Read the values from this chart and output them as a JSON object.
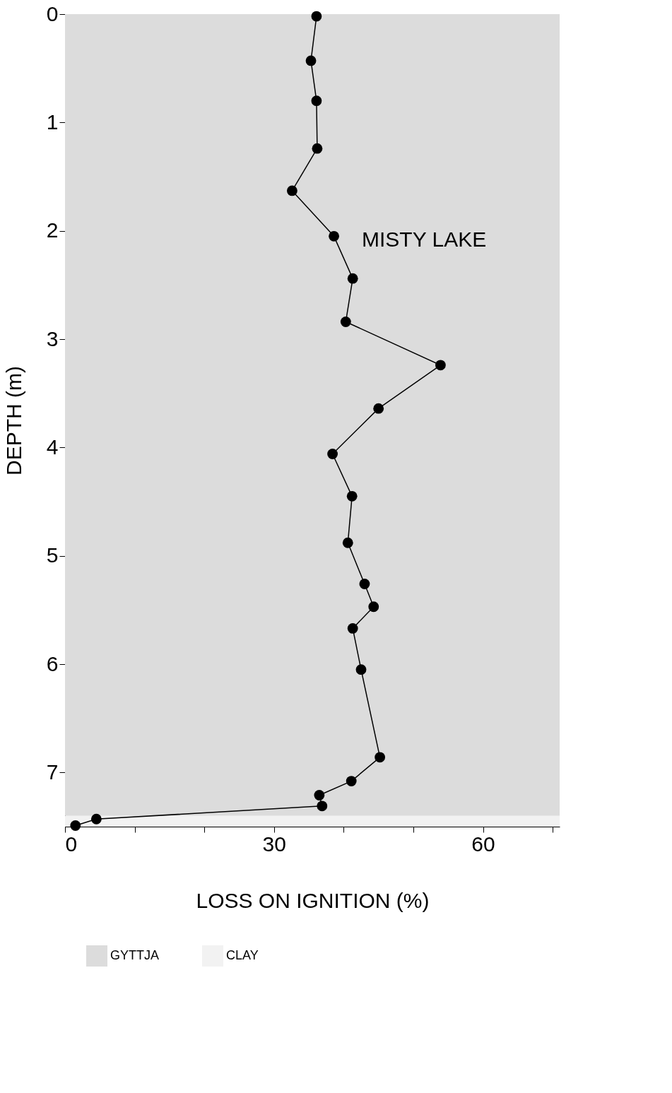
{
  "chart_data": {
    "type": "line",
    "xlabel": "LOSS ON IGNITION (%)",
    "ylabel": "DEPTH (m)",
    "series": [
      {
        "color": "#000000",
        "x": [
          36.1,
          35.3,
          36.1,
          36.2,
          32.6,
          38.6,
          41.3,
          40.3,
          53.9,
          45.0,
          38.4,
          41.2,
          40.6,
          43.0,
          44.3,
          41.3,
          42.5,
          45.2,
          41.1,
          36.5,
          36.9,
          4.5,
          1.5
        ],
        "values": [
          0.02,
          0.43,
          0.8,
          1.24,
          1.63,
          2.05,
          2.44,
          2.84,
          3.24,
          3.64,
          4.06,
          4.45,
          4.88,
          5.26,
          5.47,
          5.67,
          6.05,
          6.86,
          7.08,
          7.21,
          7.31,
          7.43,
          7.49
        ]
      }
    ],
    "xlim": [
      0,
      71
    ],
    "xticks": [
      0,
      {
        "value": 10,
        "label": null
      },
      {
        "value": 20,
        "label": null
      },
      30,
      {
        "value": 40,
        "label": null
      },
      {
        "value": 50,
        "label": null
      },
      60,
      {
        "value": 70,
        "label": null
      }
    ],
    "ylim": [
      7.5,
      0
    ],
    "yticks": [
      0,
      1,
      2,
      3,
      4,
      5,
      6,
      7
    ],
    "annotations": [
      "MISTY LAKE"
    ],
    "bands": [
      {
        "axis": "y",
        "from": 0,
        "to": 7.4,
        "label": "GYTTJA",
        "color": "#dcdcdc"
      },
      {
        "axis": "y",
        "from": 7.4,
        "to": 7.5,
        "label": "CLAY",
        "color": "#f2f2f2"
      }
    ],
    "legend": "bottom",
    "grid": false,
    "marker": "circle",
    "line_style": "solid"
  }
}
